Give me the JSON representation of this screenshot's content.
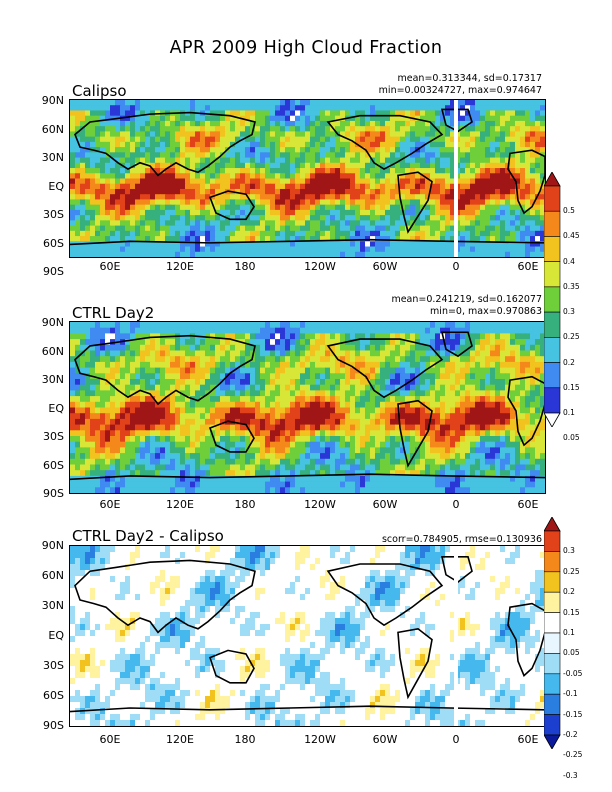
{
  "figure": {
    "title": "APR 2009 High Cloud Fraction"
  },
  "lat_labels": [
    "90N",
    "60N",
    "30N",
    "EQ",
    "30S",
    "60S",
    "90S"
  ],
  "lon_labels": [
    "60E",
    "120E",
    "180",
    "120W",
    "60W",
    "0",
    "60E"
  ],
  "panels": [
    {
      "title": "Calipso",
      "stats_line1": "mean=0.313344, sd=0.17317",
      "stats_line2": "min=0.00324727, max=0.974647"
    },
    {
      "title": "CTRL Day2",
      "stats_line1": "mean=0.241219, sd=0.162077",
      "stats_line2": "min=0, max=0.970863"
    },
    {
      "title": "CTRL Day2 - Calipso",
      "stats_line1": "scorr=0.784905, rmse=0.130936",
      "stats_line2": ""
    }
  ],
  "colorbar_fraction": {
    "labels": [
      "0.05",
      "0.1",
      "0.15",
      "0.2",
      "0.25",
      "0.3",
      "0.35",
      "0.4",
      "0.45",
      "0.5"
    ],
    "colors": [
      "#ffffff",
      "#2a37d6",
      "#3f8bf2",
      "#45c3e0",
      "#36b07d",
      "#6fcf3a",
      "#d8e637",
      "#f2c21e",
      "#f5881b",
      "#e2421a",
      "#a01616"
    ]
  },
  "colorbar_diff": {
    "labels": [
      "0.3",
      "0.25",
      "0.2",
      "0.15",
      "0.1",
      "0.05",
      "-0.05",
      "-0.1",
      "-0.15",
      "-0.2",
      "-0.25",
      "-0.3"
    ],
    "colors": [
      "#a01616",
      "#e2421a",
      "#f5881b",
      "#f2c21e",
      "#fff3a0",
      "#ffffff",
      "#e8f6ff",
      "#9fdcf5",
      "#45b8ee",
      "#2a7ee0",
      "#1d3fd0",
      "#0a1a9a"
    ]
  }
}
